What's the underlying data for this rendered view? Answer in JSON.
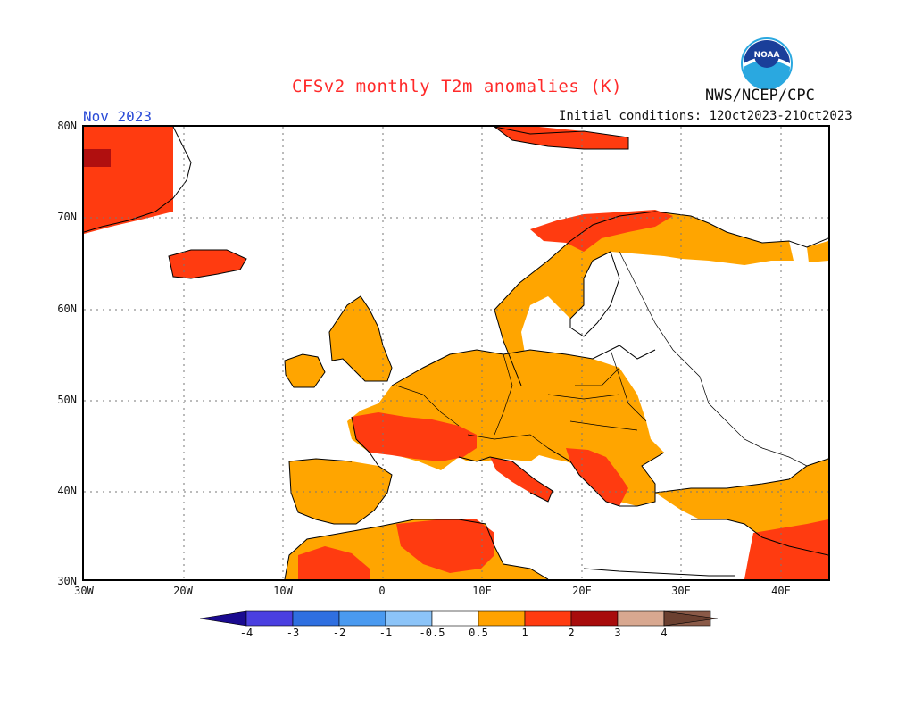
{
  "header": {
    "title": "CFSv2 monthly T2m anomalies (K)",
    "agency": "NWS/NCEP/CPC",
    "logo_text": "NOAA",
    "month": "Nov 2023",
    "initial_conditions": "Initial conditions: 12Oct2023-21Oct2023"
  },
  "map": {
    "lat_labels": [
      "80N",
      "70N",
      "60N",
      "50N",
      "40N",
      "30N"
    ],
    "lon_labels": [
      "30W",
      "20W",
      "10W",
      "0",
      "10E",
      "20E",
      "30E",
      "40E"
    ],
    "extent": {
      "lon_min": -30,
      "lon_max": 45,
      "lat_min": 30,
      "lat_max": 80
    },
    "grid": "dotted every 10 degrees",
    "anomaly_regions": [
      {
        "region": "Greenland east coast",
        "class": "1-2 with 2-3 core"
      },
      {
        "region": "Iceland",
        "class": "1-2"
      },
      {
        "region": "Svalbard",
        "class": "1-2"
      },
      {
        "region": "Norway / Sweden / Finland",
        "class": "0.5-1 with 1-2 in far north"
      },
      {
        "region": "British Isles",
        "class": "0.5-1"
      },
      {
        "region": "Western and Central Europe",
        "class": "0.5-1"
      },
      {
        "region": "France",
        "class": "1-2"
      },
      {
        "region": "Iberia",
        "class": "0.5-1"
      },
      {
        "region": "Italy / Balkans",
        "class": "1-2"
      },
      {
        "region": "North Africa",
        "class": "0.5-2"
      },
      {
        "region": "Turkey / Middle East",
        "class": "0.5-2"
      }
    ]
  },
  "colorbar": {
    "labels": [
      "-4",
      "-3",
      "-2",
      "-1",
      "-0.5",
      "0.5",
      "1",
      "2",
      "3",
      "4"
    ],
    "colors": [
      "#2b0fb0",
      "#4a3fe0",
      "#2f6fe0",
      "#4a9af0",
      "#8cc4f8",
      "#ffffff",
      "#ffa200",
      "#ff3b10",
      "#a80c0c",
      "#d8a890",
      "#8a5a48"
    ],
    "arrow_low_color": "#1a0a90",
    "arrow_high_color": "#6b4030"
  },
  "colors": {
    "c05": "#ffa500",
    "c1": "#ff3b10",
    "c2": "#b00f0f",
    "title": "#ff2a2a",
    "month": "#2a4bd7"
  }
}
